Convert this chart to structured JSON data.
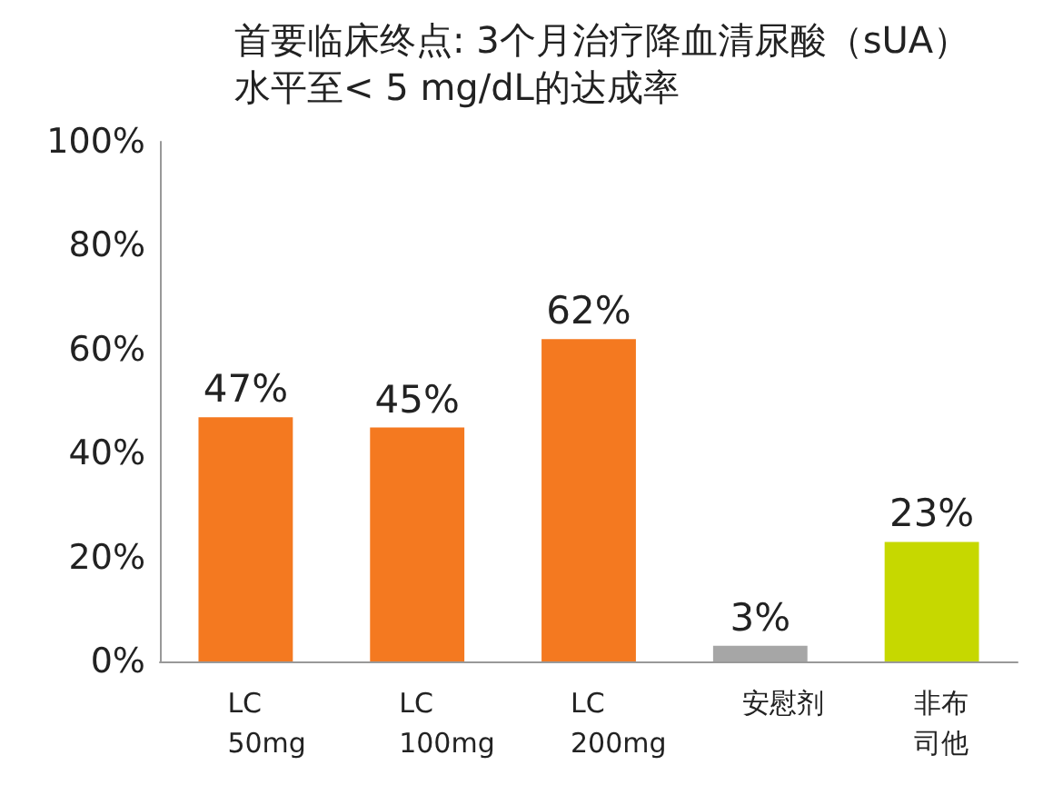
{
  "chart_data": {
    "type": "bar",
    "title": "首要临床终点: 3个月治疗降血清尿酸（sUA）水平至< 5 mg/dL的达成率",
    "categories": [
      "LC 50mg",
      "LC 100mg",
      "LC 200mg",
      "安慰剂",
      "非布司他"
    ],
    "values": [
      47,
      45,
      62,
      3,
      23
    ],
    "colors": [
      "#f47920",
      "#f47920",
      "#f47920",
      "#a6a6a6",
      "#c6d800"
    ],
    "value_labels": [
      "47%",
      "45%",
      "62%",
      "3%",
      "23%"
    ],
    "ylim": [
      0,
      100
    ],
    "yticks": [
      {
        "value": 0,
        "label": "0%"
      },
      {
        "value": 20,
        "label": "20%"
      },
      {
        "value": 40,
        "label": "40%"
      },
      {
        "value": 60,
        "label": "60%"
      },
      {
        "value": 80,
        "label": "80%"
      },
      {
        "value": 100,
        "label": "100%"
      }
    ],
    "grid": false
  }
}
